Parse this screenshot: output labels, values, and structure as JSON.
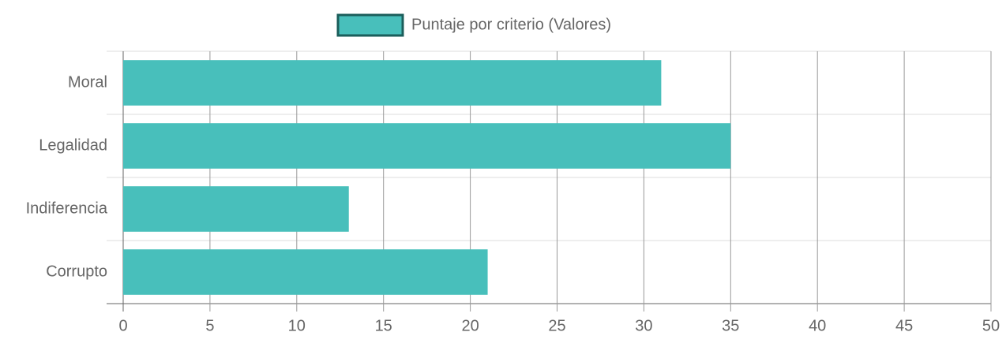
{
  "chart_data": {
    "type": "hbar",
    "categories": [
      "Moral",
      "Legalidad",
      "Indiferencia",
      "Corrupto"
    ],
    "series": [
      {
        "name": "Puntaje por criterio (Valores)",
        "color": "#48bfbb",
        "border_color": "#1b5e5b",
        "values": [
          31,
          35,
          13,
          21
        ]
      }
    ],
    "xlim": [
      0,
      50
    ],
    "xticks": [
      0,
      5,
      10,
      15,
      20,
      25,
      30,
      35,
      40,
      45,
      50
    ],
    "grid": true,
    "legend": "top"
  }
}
